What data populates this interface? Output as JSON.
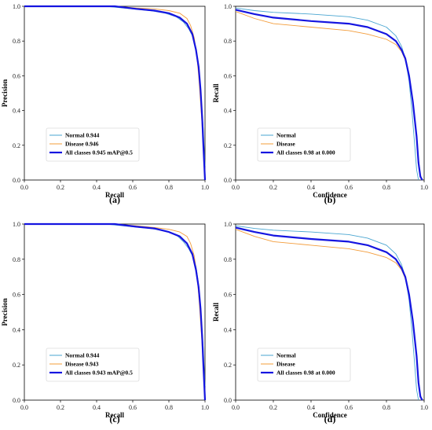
{
  "figure": {
    "panels": [
      "(a)",
      "(b)",
      "(c)",
      "(d)"
    ]
  },
  "colors": {
    "normal": "#4aa6d1",
    "disease": "#f39c3a",
    "all": "#1515e0"
  },
  "chart_data": [
    {
      "type": "line",
      "caption": "(a)",
      "xlabel": "Recall",
      "ylabel": "Precision",
      "xlim": [
        0,
        1
      ],
      "ylim": [
        0,
        1
      ],
      "xticks": [
        "0.0",
        "0.2",
        "0.4",
        "0.6",
        "0.8",
        "1.0"
      ],
      "yticks": [
        "0.0",
        "0.2",
        "0.4",
        "0.6",
        "0.8",
        "1.0"
      ],
      "legend_position": "lower-left",
      "series": [
        {
          "name": "Normal 0.944",
          "color_key": "normal",
          "x": [
            0,
            0.45,
            0.6,
            0.7,
            0.78,
            0.84,
            0.88,
            0.91,
            0.93,
            0.95,
            0.96,
            0.97,
            0.98,
            0.99,
            1.0
          ],
          "y": [
            1.0,
            1.0,
            0.985,
            0.975,
            0.96,
            0.94,
            0.91,
            0.87,
            0.83,
            0.76,
            0.68,
            0.58,
            0.45,
            0.3,
            0.08
          ]
        },
        {
          "name": "Disease 0.946",
          "color_key": "disease",
          "x": [
            0,
            0.5,
            0.62,
            0.72,
            0.8,
            0.86,
            0.9,
            0.92,
            0.94,
            0.955,
            0.965,
            0.975,
            0.985,
            0.99,
            1.0
          ],
          "y": [
            1.0,
            1.0,
            0.99,
            0.985,
            0.975,
            0.96,
            0.93,
            0.89,
            0.82,
            0.72,
            0.6,
            0.45,
            0.3,
            0.2,
            0.05
          ]
        },
        {
          "name": "All classes 0.945 mAP@0.5",
          "color_key": "all",
          "x": [
            0,
            0.5,
            0.62,
            0.72,
            0.8,
            0.86,
            0.9,
            0.93,
            0.95,
            0.965,
            0.975,
            0.985,
            0.99,
            1.0
          ],
          "y": [
            1.0,
            1.0,
            0.985,
            0.975,
            0.96,
            0.935,
            0.9,
            0.84,
            0.75,
            0.65,
            0.52,
            0.35,
            0.22,
            0.0
          ]
        }
      ]
    },
    {
      "type": "line",
      "caption": "(b)",
      "xlabel": "Confidence",
      "ylabel": "Recall",
      "xlim": [
        0,
        1
      ],
      "ylim": [
        0,
        1
      ],
      "xticks": [
        "0.0",
        "0.2",
        "0.4",
        "0.6",
        "0.8",
        "1.0"
      ],
      "yticks": [
        "0.0",
        "0.2",
        "0.4",
        "0.6",
        "0.8",
        "1.0"
      ],
      "legend_position": "lower-left",
      "series": [
        {
          "name": "Normal",
          "color_key": "normal",
          "x": [
            0,
            0.1,
            0.2,
            0.4,
            0.6,
            0.7,
            0.8,
            0.85,
            0.88,
            0.9,
            0.92,
            0.935,
            0.95,
            0.96,
            0.97
          ],
          "y": [
            0.99,
            0.975,
            0.965,
            0.955,
            0.94,
            0.92,
            0.88,
            0.83,
            0.77,
            0.7,
            0.57,
            0.4,
            0.2,
            0.06,
            0.0
          ]
        },
        {
          "name": "Disease",
          "color_key": "disease",
          "x": [
            0,
            0.1,
            0.2,
            0.4,
            0.6,
            0.7,
            0.8,
            0.85,
            0.88,
            0.9,
            0.92,
            0.94,
            0.96,
            0.97,
            0.98,
            0.99
          ],
          "y": [
            0.97,
            0.93,
            0.9,
            0.88,
            0.86,
            0.84,
            0.81,
            0.78,
            0.74,
            0.69,
            0.6,
            0.46,
            0.25,
            0.12,
            0.03,
            0.0
          ]
        },
        {
          "name": "All classes 0.98 at 0.000",
          "color_key": "all",
          "x": [
            0,
            0.1,
            0.2,
            0.4,
            0.6,
            0.7,
            0.8,
            0.85,
            0.88,
            0.9,
            0.92,
            0.94,
            0.96,
            0.97,
            0.98,
            0.99
          ],
          "y": [
            0.98,
            0.955,
            0.935,
            0.915,
            0.9,
            0.88,
            0.84,
            0.8,
            0.75,
            0.7,
            0.6,
            0.45,
            0.25,
            0.1,
            0.02,
            0.0
          ]
        }
      ]
    },
    {
      "type": "line",
      "caption": "(c)",
      "xlabel": "Recall",
      "ylabel": "Precision",
      "xlim": [
        0,
        1
      ],
      "ylim": [
        0,
        1
      ],
      "xticks": [
        "0.0",
        "0.2",
        "0.4",
        "0.6",
        "0.8",
        "1.0"
      ],
      "yticks": [
        "0.0",
        "0.2",
        "0.4",
        "0.6",
        "0.8",
        "1.0"
      ],
      "legend_position": "lower-left",
      "series": [
        {
          "name": "Normal 0.944",
          "color_key": "normal",
          "x": [
            0,
            0.45,
            0.6,
            0.7,
            0.78,
            0.84,
            0.88,
            0.91,
            0.93,
            0.95,
            0.96,
            0.97,
            0.98,
            0.99,
            1.0
          ],
          "y": [
            1.0,
            1.0,
            0.985,
            0.975,
            0.96,
            0.94,
            0.9,
            0.86,
            0.82,
            0.76,
            0.69,
            0.58,
            0.46,
            0.3,
            0.08
          ]
        },
        {
          "name": "Disease 0.943",
          "color_key": "disease",
          "x": [
            0,
            0.5,
            0.62,
            0.72,
            0.8,
            0.86,
            0.9,
            0.92,
            0.94,
            0.955,
            0.965,
            0.975,
            0.985,
            0.99,
            1.0
          ],
          "y": [
            1.0,
            1.0,
            0.99,
            0.98,
            0.97,
            0.955,
            0.93,
            0.89,
            0.82,
            0.72,
            0.6,
            0.45,
            0.3,
            0.2,
            0.05
          ]
        },
        {
          "name": "All classes 0.943 mAP@0.5",
          "color_key": "all",
          "x": [
            0,
            0.5,
            0.62,
            0.72,
            0.8,
            0.86,
            0.9,
            0.93,
            0.95,
            0.965,
            0.975,
            0.985,
            0.99,
            1.0
          ],
          "y": [
            1.0,
            1.0,
            0.985,
            0.975,
            0.955,
            0.93,
            0.89,
            0.83,
            0.74,
            0.64,
            0.52,
            0.35,
            0.22,
            0.0
          ]
        }
      ]
    },
    {
      "type": "line",
      "caption": "(d)",
      "xlabel": "Confidence",
      "ylabel": "Recall",
      "xlim": [
        0,
        1
      ],
      "ylim": [
        0,
        1
      ],
      "xticks": [
        "0.0",
        "0.2",
        "0.4",
        "0.6",
        "0.8",
        "1.0"
      ],
      "yticks": [
        "0.0",
        "0.2",
        "0.4",
        "0.6",
        "0.8",
        "1.0"
      ],
      "legend_position": "lower-left",
      "series": [
        {
          "name": "Normal",
          "color_key": "normal",
          "x": [
            0,
            0.1,
            0.2,
            0.4,
            0.6,
            0.7,
            0.8,
            0.85,
            0.88,
            0.9,
            0.92,
            0.935,
            0.95,
            0.96,
            0.97
          ],
          "y": [
            0.99,
            0.975,
            0.965,
            0.955,
            0.94,
            0.92,
            0.88,
            0.83,
            0.77,
            0.7,
            0.57,
            0.4,
            0.2,
            0.06,
            0.0
          ]
        },
        {
          "name": "Disease",
          "color_key": "disease",
          "x": [
            0,
            0.1,
            0.2,
            0.4,
            0.6,
            0.7,
            0.8,
            0.85,
            0.88,
            0.9,
            0.92,
            0.94,
            0.96,
            0.97,
            0.98,
            0.99
          ],
          "y": [
            0.97,
            0.93,
            0.9,
            0.88,
            0.86,
            0.84,
            0.81,
            0.78,
            0.74,
            0.69,
            0.6,
            0.46,
            0.25,
            0.12,
            0.03,
            0.0
          ]
        },
        {
          "name": "All classes 0.98 at 0.000",
          "color_key": "all",
          "x": [
            0,
            0.1,
            0.2,
            0.4,
            0.6,
            0.7,
            0.8,
            0.85,
            0.88,
            0.9,
            0.92,
            0.94,
            0.96,
            0.97,
            0.98,
            0.99
          ],
          "y": [
            0.98,
            0.955,
            0.935,
            0.915,
            0.9,
            0.88,
            0.84,
            0.8,
            0.75,
            0.7,
            0.6,
            0.45,
            0.25,
            0.1,
            0.02,
            0.0
          ]
        }
      ]
    }
  ]
}
